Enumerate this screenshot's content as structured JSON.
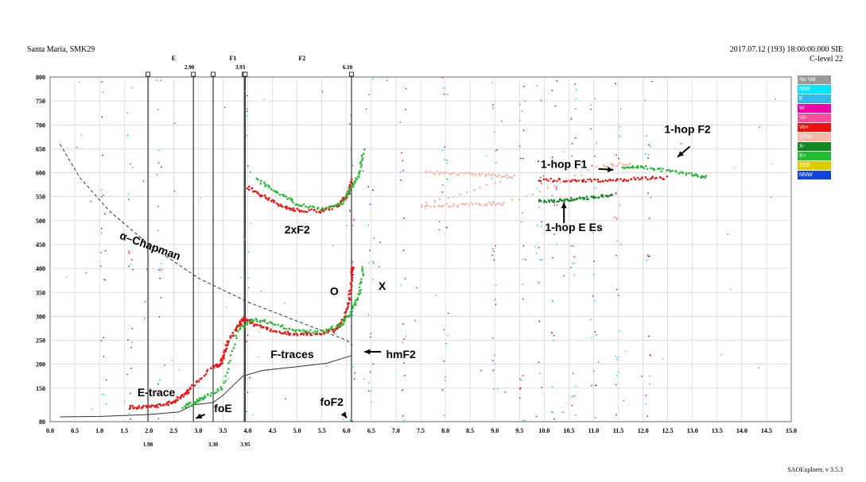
{
  "header": {
    "station": "Santa Maria, SMK29",
    "datetime": "2017.07.12 (193) 18:00:00.000 SIE",
    "clevel": "C-level 22",
    "software": "SAOExplorer, v 3.5.3"
  },
  "legend": [
    {
      "label": "No Val",
      "color": "#999999"
    },
    {
      "label": "NNE",
      "color": "#00e5ff"
    },
    {
      "label": "E",
      "color": "#33bbee"
    },
    {
      "label": "W",
      "color": "#ee00aa"
    },
    {
      "label": "Vo-",
      "color": "#ff4d9a"
    },
    {
      "label": "Vo+",
      "color": "#ee1111"
    },
    {
      "label": "SSW",
      "color": "#f5b8a8"
    },
    {
      "label": "X-",
      "color": "#118822"
    },
    {
      "label": "X+",
      "color": "#22bb33"
    },
    {
      "label": "SSE",
      "color": "#ddcc00"
    },
    {
      "label": "NNW",
      "color": "#1144dd"
    }
  ],
  "chart_data": {
    "type": "scatter",
    "xlim": [
      0.0,
      15.0
    ],
    "ylim": [
      80,
      800
    ],
    "x_ticks": [
      "0.0",
      "0.5",
      "1.0",
      "1.5",
      "2.0",
      "2.5",
      "3.0",
      "3.5",
      "4.0",
      "4.5",
      "5.0",
      "5.5",
      "6.0",
      "6.5",
      "7.0",
      "7.5",
      "8.0",
      "8.5",
      "9.0",
      "9.5",
      "10.0",
      "10.5",
      "11.0",
      "11.5",
      "12.0",
      "12.5",
      "13.0",
      "13.5",
      "14.0",
      "14.5",
      "15.0"
    ],
    "y_ticks": [
      80,
      150,
      200,
      250,
      300,
      350,
      400,
      450,
      500,
      550,
      600,
      650,
      700,
      750,
      800
    ],
    "grid": true,
    "vertical_markers": [
      {
        "x": 1.98,
        "top_label": "",
        "bottom_label": "1.98"
      },
      {
        "x": 2.9,
        "top_label": "2.90",
        "bottom_label": ""
      },
      {
        "x": 3.3,
        "top_label": "",
        "bottom_label": "3.30"
      },
      {
        "x": 3.93,
        "top_label": "3.93",
        "bottom_label": ""
      },
      {
        "x": 3.95,
        "top_label": "",
        "bottom_label": "3.95"
      },
      {
        "x": 6.1,
        "top_label": "6.10",
        "bottom_label": ""
      }
    ],
    "layer_labels": [
      {
        "text": "E",
        "x": 2.5
      },
      {
        "text": "F1",
        "x": 3.7
      },
      {
        "text": "F2",
        "x": 5.1
      }
    ],
    "series": [
      {
        "name": "O",
        "color": "#ee1111",
        "points": [
          [
            1.6,
            110
          ],
          [
            1.9,
            110
          ],
          [
            2.2,
            112
          ],
          [
            2.5,
            122
          ],
          [
            2.7,
            135
          ],
          [
            2.85,
            150
          ],
          [
            3.3,
            195
          ],
          [
            3.45,
            200
          ],
          [
            3.5,
            215
          ],
          [
            3.6,
            245
          ],
          [
            3.8,
            280
          ],
          [
            3.93,
            295
          ],
          [
            4.2,
            280
          ],
          [
            4.6,
            268
          ],
          [
            5.0,
            262
          ],
          [
            5.4,
            262
          ],
          [
            5.8,
            272
          ],
          [
            5.95,
            295
          ],
          [
            6.05,
            330
          ],
          [
            6.1,
            380
          ],
          [
            6.12,
            405
          ]
        ]
      },
      {
        "name": "X",
        "color": "#22bb33",
        "points": [
          [
            2.7,
            112
          ],
          [
            2.9,
            118
          ],
          [
            3.1,
            130
          ],
          [
            3.5,
            150
          ],
          [
            3.8,
            270
          ],
          [
            4.1,
            295
          ],
          [
            4.5,
            285
          ],
          [
            5.0,
            270
          ],
          [
            5.5,
            268
          ],
          [
            5.9,
            282
          ],
          [
            6.1,
            310
          ],
          [
            6.25,
            345
          ],
          [
            6.35,
            405
          ]
        ]
      },
      {
        "name": "2xF2 O",
        "color": "#ee1111",
        "points": [
          [
            4.0,
            570
          ],
          [
            4.3,
            552
          ],
          [
            4.7,
            530
          ],
          [
            5.0,
            522
          ],
          [
            5.5,
            520
          ],
          [
            5.8,
            530
          ],
          [
            6.0,
            550
          ],
          [
            6.12,
            585
          ]
        ]
      },
      {
        "name": "2xF2 X",
        "color": "#22bb33",
        "points": [
          [
            4.2,
            585
          ],
          [
            4.6,
            560
          ],
          [
            5.0,
            535
          ],
          [
            5.5,
            522
          ],
          [
            5.9,
            535
          ],
          [
            6.1,
            570
          ],
          [
            6.25,
            595
          ],
          [
            6.35,
            650
          ]
        ]
      },
      {
        "name": "1-hop F1",
        "color": "#ee1111",
        "points": [
          [
            9.9,
            585
          ],
          [
            10.5,
            585
          ],
          [
            11.0,
            583
          ],
          [
            11.5,
            585
          ],
          [
            12.0,
            588
          ],
          [
            12.5,
            590
          ]
        ]
      },
      {
        "name": "1-hop F2",
        "color": "#22bb33",
        "points": [
          [
            11.6,
            610
          ],
          [
            12.0,
            612
          ],
          [
            12.5,
            605
          ],
          [
            13.0,
            595
          ],
          [
            13.3,
            590
          ]
        ]
      },
      {
        "name": "1-hop E Es",
        "color": "#118822",
        "points": [
          [
            9.9,
            540
          ],
          [
            10.3,
            542
          ],
          [
            10.6,
            545
          ],
          [
            11.0,
            548
          ],
          [
            11.4,
            555
          ]
        ]
      },
      {
        "name": "SSW",
        "color": "#f5b8a8",
        "points": [
          [
            7.6,
            600
          ],
          [
            8.2,
            598
          ],
          [
            8.8,
            596
          ],
          [
            9.4,
            592
          ],
          [
            7.5,
            530
          ],
          [
            8.1,
            532
          ],
          [
            8.7,
            535
          ],
          [
            9.2,
            535
          ],
          [
            11.2,
            615
          ],
          [
            11.8,
            620
          ]
        ]
      }
    ],
    "lines": [
      {
        "name": "α-Chapman",
        "style": "dashed",
        "points": [
          [
            0.2,
            660
          ],
          [
            0.6,
            590
          ],
          [
            1.2,
            520
          ],
          [
            2.0,
            450
          ],
          [
            3.0,
            380
          ],
          [
            4.0,
            330
          ],
          [
            5.0,
            290
          ],
          [
            6.0,
            250
          ],
          [
            6.12,
            240
          ]
        ]
      },
      {
        "name": "Profile",
        "style": "solid",
        "points": [
          [
            0.2,
            90
          ],
          [
            1.0,
            91
          ],
          [
            2.0,
            95
          ],
          [
            2.6,
            100
          ],
          [
            2.9,
            115
          ],
          [
            3.3,
            120
          ],
          [
            3.5,
            135
          ],
          [
            3.9,
            175
          ],
          [
            4.3,
            187
          ],
          [
            5.0,
            195
          ],
          [
            5.6,
            202
          ],
          [
            6.1,
            218
          ]
        ]
      }
    ],
    "annotations": [
      {
        "text": "2xF2",
        "x": 5.0,
        "y": 473
      },
      {
        "text": "α–Chapman",
        "x": 2.0,
        "y": 440,
        "rotate": 20
      },
      {
        "text": "O",
        "x": 5.75,
        "y": 345
      },
      {
        "text": "X",
        "x": 6.72,
        "y": 355
      },
      {
        "text": "F-traces",
        "x": 4.9,
        "y": 213
      },
      {
        "text": "hmF2",
        "x": 7.1,
        "y": 213
      },
      {
        "text": "E-trace",
        "x": 2.15,
        "y": 133
      },
      {
        "text": "foE",
        "x": 3.5,
        "y": 100
      },
      {
        "text": "foF2",
        "x": 5.7,
        "y": 113
      },
      {
        "text": "1-hop F1",
        "x": 10.4,
        "y": 610
      },
      {
        "text": "1-hop F2",
        "x": 12.9,
        "y": 683
      },
      {
        "text": "1-hop E Es",
        "x": 10.6,
        "y": 478
      }
    ],
    "arrows": [
      {
        "from": [
          3.13,
          95
        ],
        "to": [
          2.95,
          87
        ],
        "label": "foE"
      },
      {
        "from": [
          6.7,
          226
        ],
        "to": [
          6.36,
          226
        ],
        "label": "hmF2"
      },
      {
        "from": [
          11.1,
          608
        ],
        "to": [
          11.4,
          606
        ],
        "label": "1-hop F1"
      },
      {
        "from": [
          12.95,
          655
        ],
        "to": [
          12.7,
          633
        ],
        "label": "1-hop F2"
      },
      {
        "from": [
          10.4,
          495
        ],
        "to": [
          10.4,
          538
        ],
        "label": "1-hop E Es"
      },
      {
        "from": [
          5.95,
          95
        ],
        "to": [
          6.0,
          88
        ],
        "label": "foF2"
      }
    ]
  }
}
